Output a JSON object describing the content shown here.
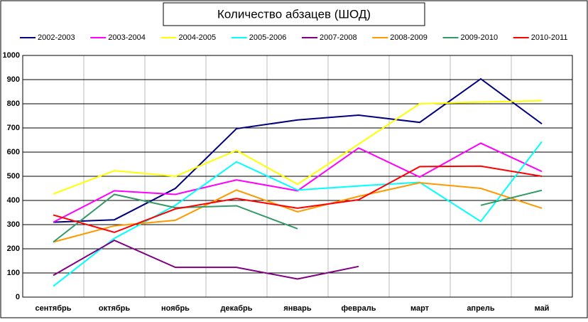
{
  "chart_data": {
    "type": "line",
    "title": "Количество абзацев (ШОД)",
    "categories": [
      "сентябрь",
      "октябрь",
      "ноябрь",
      "декабрь",
      "январь",
      "февраль",
      "март",
      "апрель",
      "май"
    ],
    "series": [
      {
        "name": "2002-2003",
        "color": "#000080",
        "values": [
          310,
          320,
          450,
          697,
          733,
          753,
          723,
          903,
          717
        ]
      },
      {
        "name": "2003-2004",
        "color": "#ff00ff",
        "values": [
          310,
          440,
          425,
          485,
          440,
          617,
          497,
          637,
          520
        ]
      },
      {
        "name": "2004-2005",
        "color": "#ffff00",
        "values": [
          427,
          523,
          500,
          607,
          467,
          633,
          800,
          807,
          813
        ]
      },
      {
        "name": "2005-2006",
        "color": "#00ffff",
        "values": [
          45,
          243,
          380,
          560,
          443,
          460,
          475,
          313,
          643
        ]
      },
      {
        "name": "2007-2008",
        "color": "#800080",
        "values": [
          90,
          235,
          123,
          123,
          75,
          127,
          null,
          null,
          null
        ]
      },
      {
        "name": "2008-2009",
        "color": "#ff9900",
        "values": [
          228,
          295,
          318,
          443,
          353,
          417,
          473,
          450,
          368
        ]
      },
      {
        "name": "2009-2010",
        "color": "#339966",
        "values": [
          228,
          425,
          370,
          378,
          283,
          null,
          null,
          380,
          442
        ]
      },
      {
        "name": "2010-2011",
        "color": "#ff0000",
        "values": [
          340,
          268,
          365,
          408,
          368,
          403,
          540,
          542,
          500
        ]
      }
    ],
    "ylim": [
      0,
      1000
    ],
    "yticks": [
      0,
      100,
      200,
      300,
      400,
      500,
      600,
      700,
      800,
      900,
      1000
    ],
    "grid": true,
    "legend": "top"
  }
}
